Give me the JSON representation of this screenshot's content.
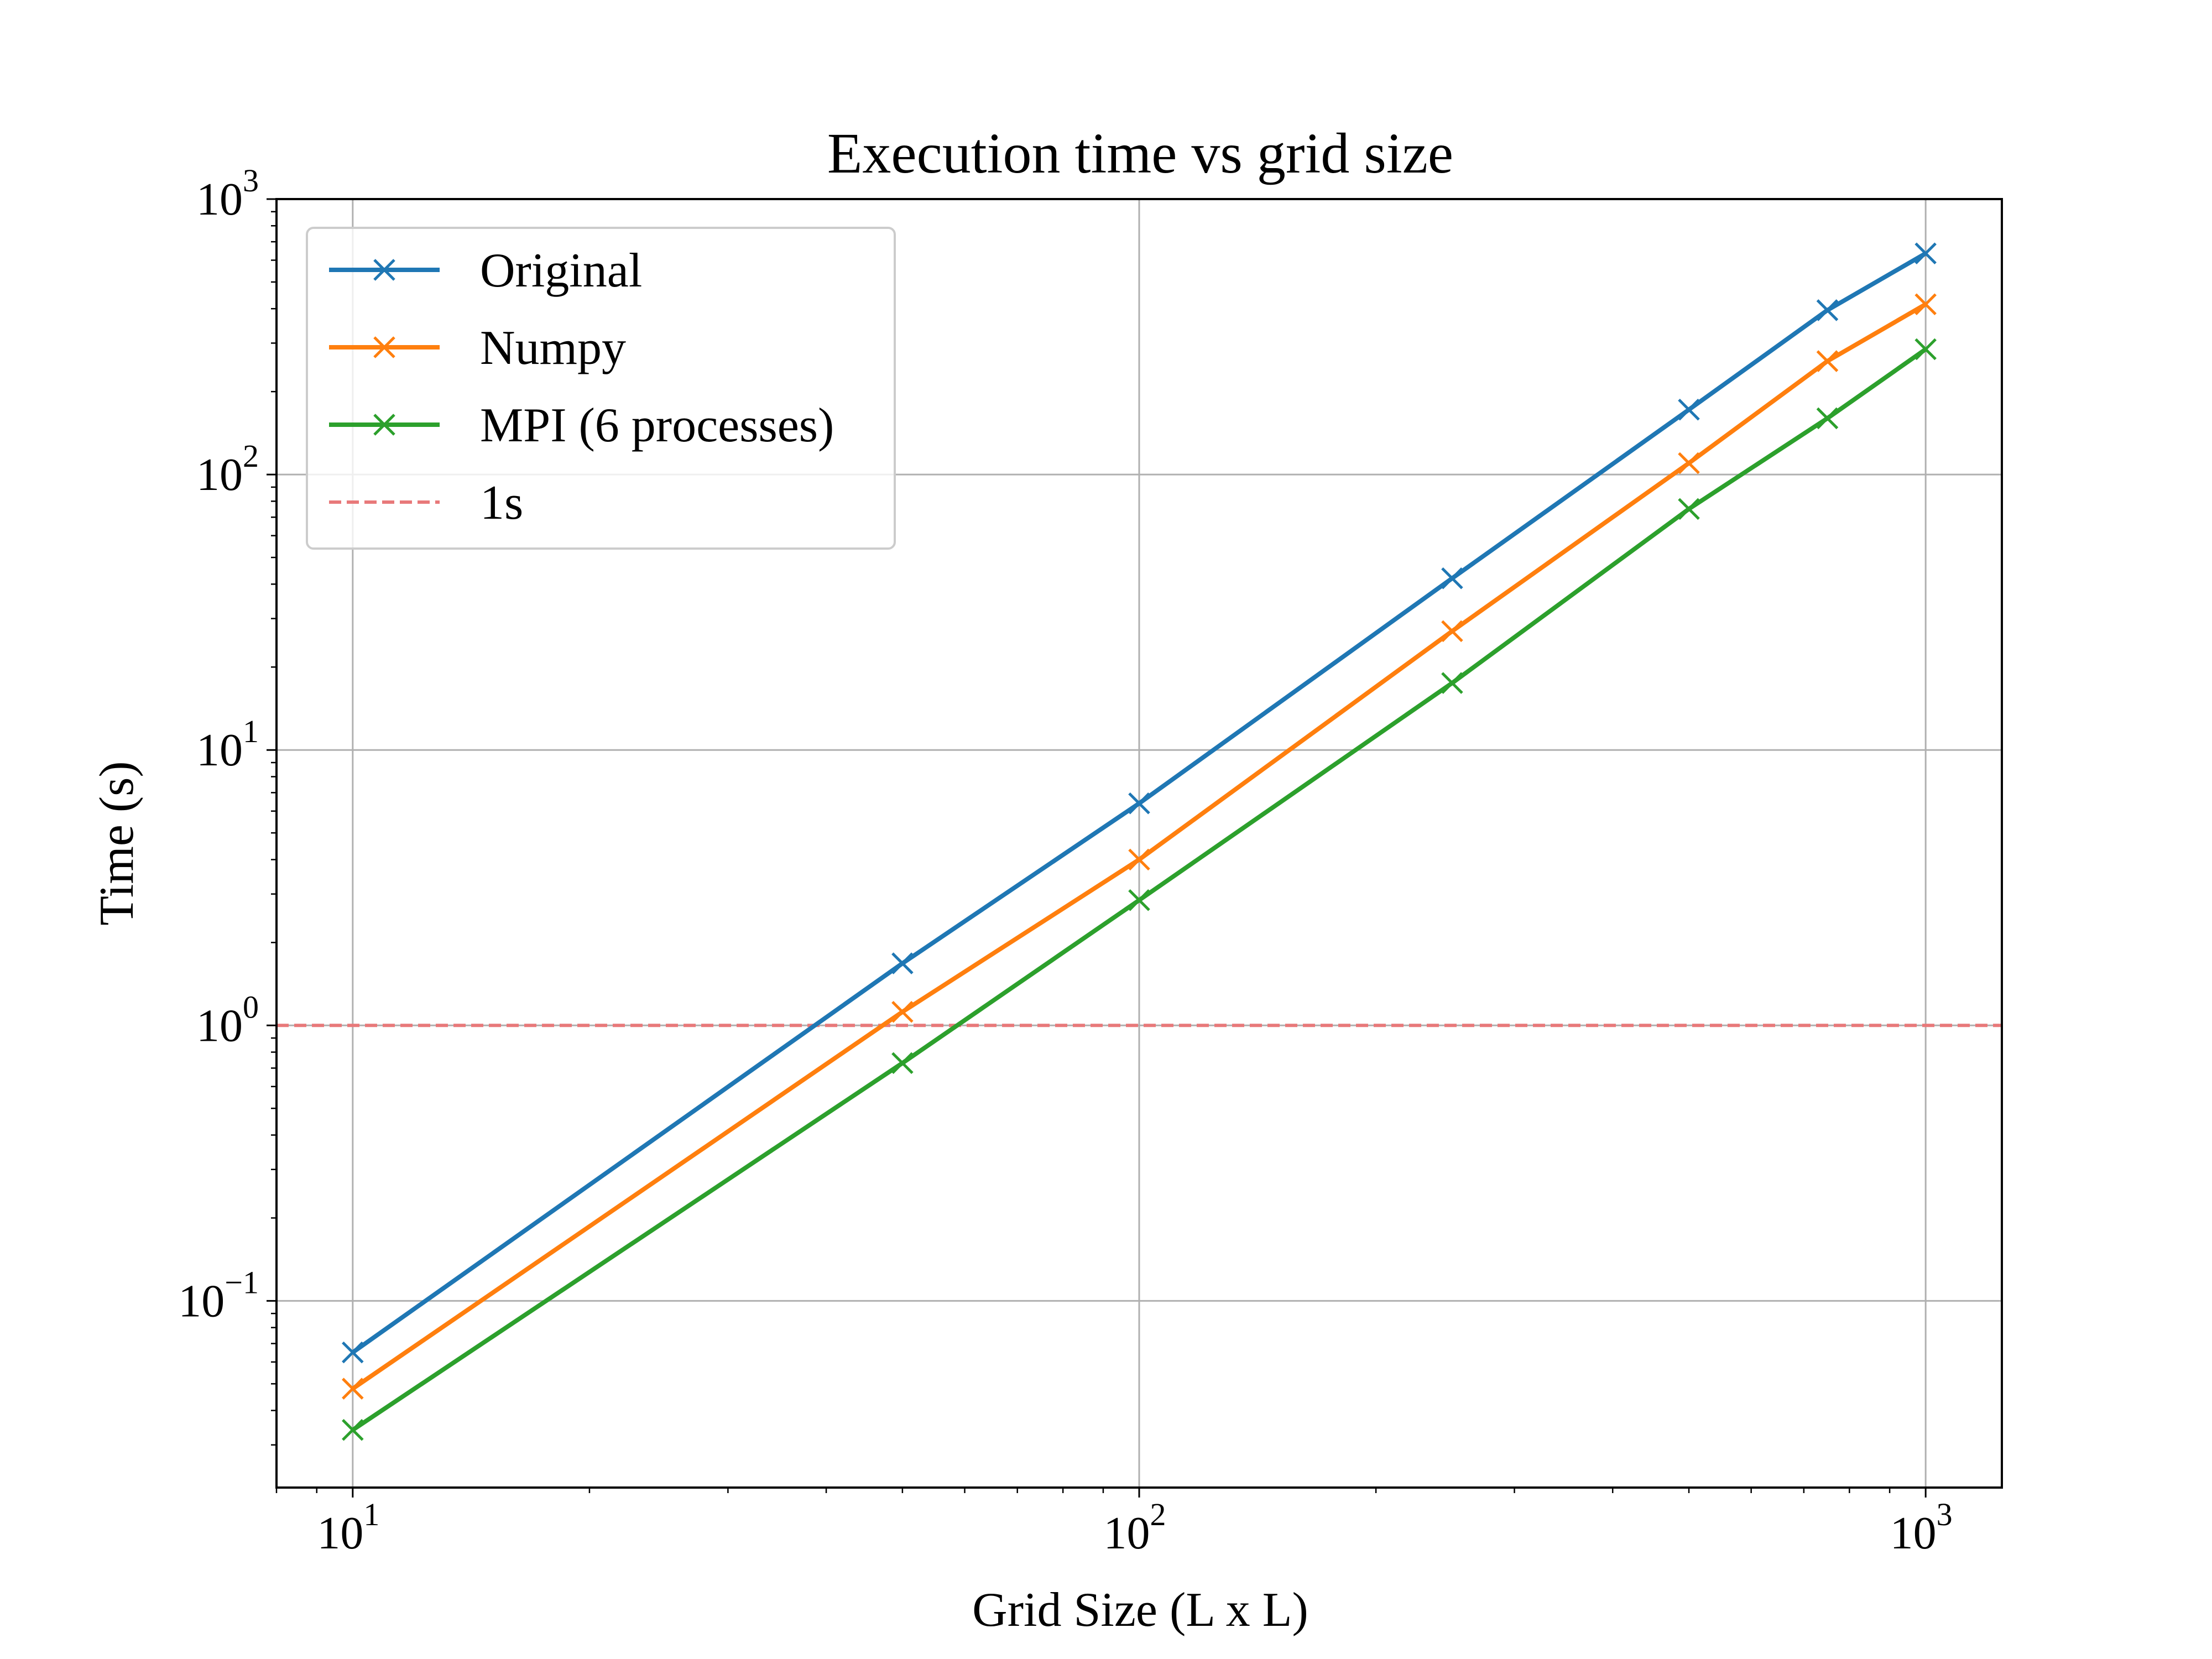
{
  "chart_data": {
    "type": "line",
    "title": "Execution time vs grid size",
    "xlabel": "Grid Size (L x L)",
    "ylabel": "Time (s)",
    "xscale": "log",
    "yscale": "log",
    "xlim": [
      8,
      1250
    ],
    "ylim": [
      0.021,
      1000
    ],
    "x_ticks": [
      {
        "value": 10,
        "base": "10",
        "exp": "1"
      },
      {
        "value": 100,
        "base": "10",
        "exp": "2"
      },
      {
        "value": 1000,
        "base": "10",
        "exp": "3"
      }
    ],
    "y_ticks": [
      {
        "value": 0.1,
        "base": "10",
        "exp": "−1"
      },
      {
        "value": 1,
        "base": "10",
        "exp": "0"
      },
      {
        "value": 10,
        "base": "10",
        "exp": "1"
      },
      {
        "value": 100,
        "base": "10",
        "exp": "2"
      },
      {
        "value": 1000,
        "base": "10",
        "exp": "3"
      }
    ],
    "grid": true,
    "legend_position": "top-left",
    "x": [
      10,
      50,
      100,
      250,
      500,
      750,
      1000
    ],
    "series": [
      {
        "name": "Original",
        "color": "#1f77b4",
        "marker": "x",
        "values": [
          0.065,
          1.68,
          6.4,
          42,
          172,
          395,
          635
        ]
      },
      {
        "name": "Numpy",
        "color": "#ff7f0e",
        "marker": "x",
        "values": [
          0.048,
          1.12,
          4.0,
          27,
          110,
          258,
          415
        ]
      },
      {
        "name": "MPI (6 processes)",
        "color": "#2ca02c",
        "marker": "x",
        "values": [
          0.034,
          0.73,
          2.85,
          17.5,
          75,
          160,
          285
        ]
      }
    ],
    "reference_lines": [
      {
        "name": "1s",
        "y": 1,
        "color": "#e8797a",
        "style": "dashed"
      }
    ]
  }
}
